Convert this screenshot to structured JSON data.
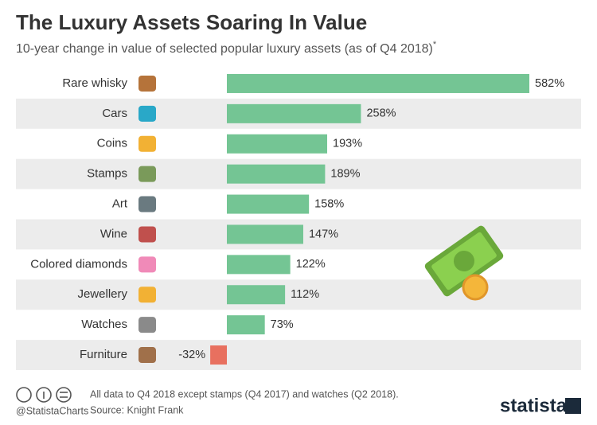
{
  "chart_data": {
    "type": "bar",
    "orientation": "horizontal",
    "title": "The Luxury Assets Soaring In Value",
    "subtitle": "10-year change in value of selected popular luxury assets (as of Q4 2018)",
    "subtitle_marker": "*",
    "categories": [
      "Rare whisky",
      "Cars",
      "Coins",
      "Stamps",
      "Art",
      "Wine",
      "Colored diamonds",
      "Jewellery",
      "Watches",
      "Furniture"
    ],
    "values": [
      582,
      258,
      193,
      189,
      158,
      147,
      122,
      112,
      73,
      -32
    ],
    "value_labels": [
      "582%",
      "258%",
      "193%",
      "189%",
      "158%",
      "147%",
      "122%",
      "112%",
      "73%",
      "-32%"
    ],
    "color": "#74c594",
    "negative_color": "#e8705f",
    "note": "All data to Q4 2018 except stamps (Q4 2017) and watches (Q2 2018).",
    "source": "Source: Knight Frank",
    "handle": "@StatistaCharts",
    "brand": "statista"
  }
}
